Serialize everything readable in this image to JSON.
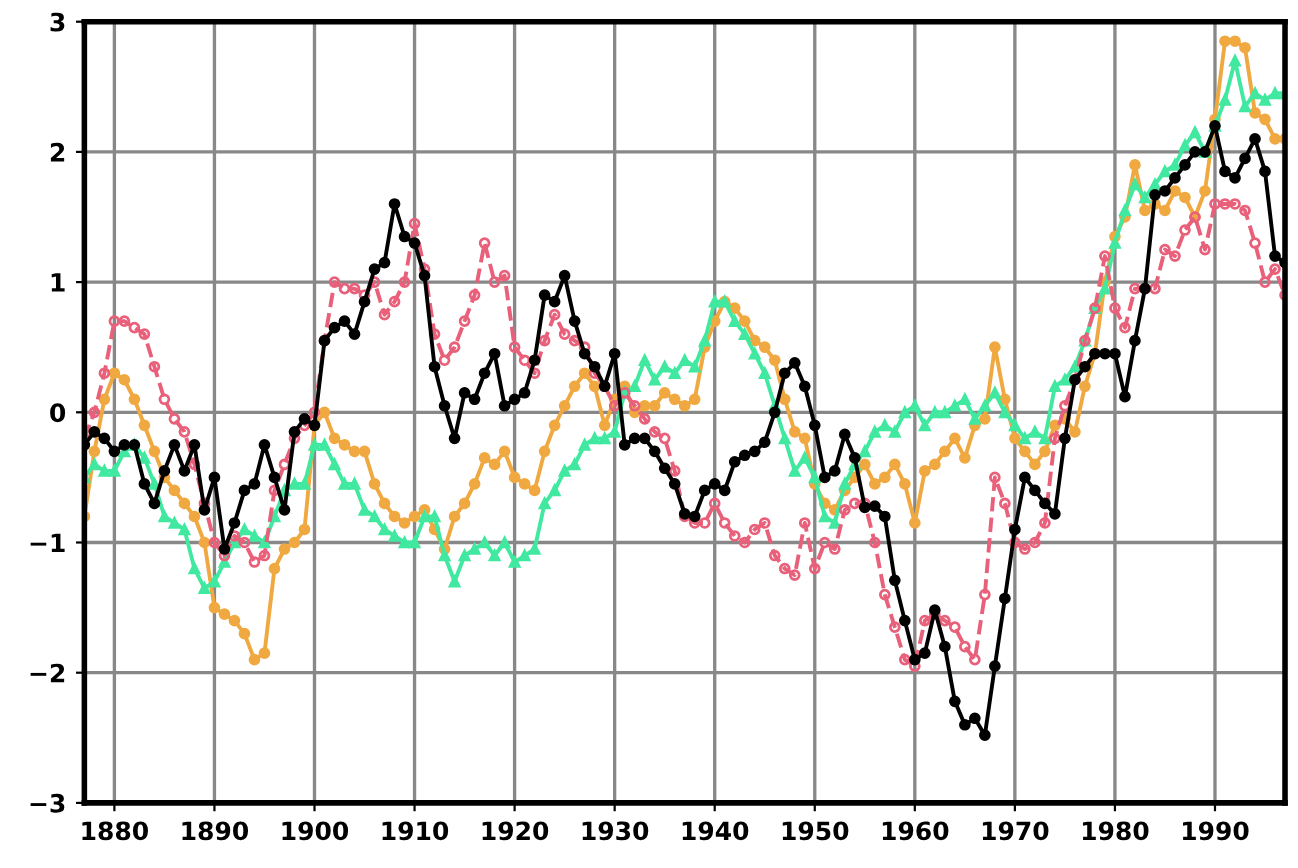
{
  "chart_data": {
    "type": "line",
    "x": [
      1877,
      1878,
      1879,
      1880,
      1881,
      1882,
      1883,
      1884,
      1885,
      1886,
      1887,
      1888,
      1889,
      1890,
      1891,
      1892,
      1893,
      1894,
      1895,
      1896,
      1897,
      1898,
      1899,
      1900,
      1901,
      1902,
      1903,
      1904,
      1905,
      1906,
      1907,
      1908,
      1909,
      1910,
      1911,
      1912,
      1913,
      1914,
      1915,
      1916,
      1917,
      1918,
      1919,
      1920,
      1921,
      1922,
      1923,
      1924,
      1925,
      1926,
      1927,
      1928,
      1929,
      1930,
      1931,
      1932,
      1933,
      1934,
      1935,
      1936,
      1937,
      1938,
      1939,
      1940,
      1941,
      1942,
      1943,
      1944,
      1945,
      1946,
      1947,
      1948,
      1949,
      1950,
      1951,
      1952,
      1953,
      1954,
      1955,
      1956,
      1957,
      1958,
      1959,
      1960,
      1961,
      1962,
      1963,
      1964,
      1965,
      1966,
      1967,
      1968,
      1969,
      1970,
      1971,
      1972,
      1973,
      1974,
      1975,
      1976,
      1977,
      1978,
      1979,
      1980,
      1981,
      1982,
      1983,
      1984,
      1985,
      1986,
      1987,
      1988,
      1989,
      1990,
      1991,
      1992,
      1993,
      1994,
      1995,
      1996,
      1997
    ],
    "series": [
      {
        "color": "#f0a840",
        "marker": "circle",
        "line_style": "solid",
        "values": [
          -0.8,
          -0.3,
          0.1,
          0.3,
          0.25,
          0.1,
          -0.1,
          -0.3,
          -0.5,
          -0.6,
          -0.7,
          -0.8,
          -1.0,
          -1.5,
          -1.55,
          -1.6,
          -1.7,
          -1.9,
          -1.85,
          -1.2,
          -1.05,
          -1.0,
          -0.9,
          -0.1,
          0.0,
          -0.2,
          -0.25,
          -0.3,
          -0.3,
          -0.55,
          -0.7,
          -0.8,
          -0.85,
          -0.8,
          -0.75,
          -0.9,
          -1.05,
          -0.8,
          -0.7,
          -0.55,
          -0.35,
          -0.4,
          -0.3,
          -0.5,
          -0.55,
          -0.6,
          -0.3,
          -0.1,
          0.05,
          0.2,
          0.3,
          0.2,
          -0.1,
          0.1,
          0.2,
          0.0,
          0.05,
          0.05,
          0.15,
          0.1,
          0.05,
          0.1,
          0.5,
          0.7,
          0.85,
          0.8,
          0.7,
          0.55,
          0.5,
          0.4,
          0.1,
          -0.15,
          -0.2,
          -0.55,
          -0.7,
          -0.75,
          -0.6,
          -0.5,
          -0.4,
          -0.55,
          -0.5,
          -0.4,
          -0.55,
          -0.85,
          -0.45,
          -0.4,
          -0.3,
          -0.2,
          -0.35,
          -0.1,
          -0.05,
          0.5,
          0.1,
          -0.2,
          -0.3,
          -0.4,
          -0.3,
          -0.1,
          -0.05,
          -0.15,
          0.2,
          0.45,
          1.0,
          1.35,
          1.5,
          1.9,
          1.55,
          1.6,
          1.55,
          1.7,
          1.65,
          1.5,
          1.7,
          2.25,
          2.85,
          2.85,
          2.8,
          2.3,
          2.25,
          2.1,
          2.1
        ]
      },
      {
        "color": "#40e8a0",
        "marker": "triangle",
        "line_style": "solid",
        "values": [
          -0.5,
          -0.4,
          -0.45,
          -0.45,
          -0.3,
          -0.25,
          -0.35,
          -0.55,
          -0.8,
          -0.85,
          -0.9,
          -1.2,
          -1.35,
          -1.3,
          -1.15,
          -1.0,
          -0.9,
          -0.95,
          -1.0,
          -0.8,
          -0.6,
          -0.55,
          -0.55,
          -0.25,
          -0.25,
          -0.4,
          -0.55,
          -0.55,
          -0.75,
          -0.8,
          -0.9,
          -0.95,
          -1.0,
          -1.0,
          -0.8,
          -0.8,
          -1.1,
          -1.3,
          -1.1,
          -1.05,
          -1.0,
          -1.1,
          -1.0,
          -1.15,
          -1.1,
          -1.05,
          -0.7,
          -0.6,
          -0.45,
          -0.4,
          -0.25,
          -0.2,
          -0.2,
          -0.15,
          0.15,
          0.2,
          0.4,
          0.25,
          0.35,
          0.3,
          0.4,
          0.35,
          0.55,
          0.85,
          0.85,
          0.7,
          0.6,
          0.45,
          0.3,
          0.05,
          -0.2,
          -0.45,
          -0.35,
          -0.5,
          -0.8,
          -0.85,
          -0.55,
          -0.4,
          -0.3,
          -0.15,
          -0.1,
          -0.15,
          0.0,
          0.05,
          -0.1,
          0.0,
          0.0,
          0.05,
          0.1,
          -0.05,
          0.05,
          0.15,
          0.0,
          -0.1,
          -0.2,
          -0.15,
          -0.2,
          0.2,
          0.25,
          0.35,
          0.55,
          0.8,
          0.95,
          1.3,
          1.55,
          1.75,
          1.65,
          1.75,
          1.85,
          1.9,
          2.05,
          2.15,
          2.0,
          2.2,
          2.4,
          2.7,
          2.35,
          2.45,
          2.4,
          2.45,
          2.45
        ]
      },
      {
        "color": "#e8607a",
        "marker": "circle",
        "line_style": "dashed",
        "values": [
          -0.2,
          0.0,
          0.3,
          0.7,
          0.7,
          0.65,
          0.6,
          0.35,
          0.1,
          -0.05,
          -0.15,
          -0.4,
          -0.7,
          -1.0,
          -1.1,
          -0.95,
          -1.0,
          -1.15,
          -1.1,
          -0.6,
          -0.4,
          -0.2,
          -0.1,
          0.0,
          0.55,
          1.0,
          0.95,
          0.95,
          0.9,
          1.0,
          0.75,
          0.85,
          1.0,
          1.45,
          1.1,
          0.6,
          0.4,
          0.5,
          0.7,
          0.9,
          1.3,
          1.0,
          1.05,
          0.5,
          0.4,
          0.3,
          0.55,
          0.75,
          0.6,
          0.55,
          0.5,
          0.3,
          0.2,
          0.05,
          0.15,
          0.05,
          -0.05,
          -0.15,
          -0.2,
          -0.45,
          -0.8,
          -0.85,
          -0.85,
          -0.7,
          -0.85,
          -0.95,
          -1.0,
          -0.9,
          -0.85,
          -1.1,
          -1.2,
          -1.25,
          -0.85,
          -1.2,
          -1.0,
          -1.05,
          -0.75,
          -0.7,
          -0.7,
          -1.0,
          -1.4,
          -1.65,
          -1.9,
          -1.95,
          -1.6,
          -1.55,
          -1.6,
          -1.65,
          -1.8,
          -1.9,
          -1.4,
          -0.5,
          -0.7,
          -1.0,
          -1.05,
          -1.0,
          -0.85,
          -0.2,
          0.05,
          0.25,
          0.55,
          0.8,
          1.2,
          0.8,
          0.65,
          0.95,
          0.95,
          0.95,
          1.25,
          1.2,
          1.4,
          1.5,
          1.25,
          1.6,
          1.6,
          1.6,
          1.55,
          1.3,
          1.0,
          1.1,
          0.9
        ]
      },
      {
        "color": "#000000",
        "marker": "circle",
        "line_style": "solid",
        "values": [
          -0.25,
          -0.15,
          -0.2,
          -0.3,
          -0.25,
          -0.25,
          -0.55,
          -0.7,
          -0.45,
          -0.25,
          -0.45,
          -0.25,
          -0.75,
          -0.5,
          -1.05,
          -0.85,
          -0.6,
          -0.55,
          -0.25,
          -0.5,
          -0.75,
          -0.15,
          -0.05,
          -0.1,
          0.55,
          0.65,
          0.7,
          0.6,
          0.85,
          1.1,
          1.15,
          1.6,
          1.35,
          1.3,
          1.05,
          0.35,
          0.05,
          -0.2,
          0.15,
          0.1,
          0.3,
          0.45,
          0.05,
          0.1,
          0.15,
          0.4,
          0.9,
          0.85,
          1.05,
          0.7,
          0.45,
          0.35,
          0.2,
          0.45,
          -0.25,
          -0.2,
          -0.2,
          -0.3,
          -0.43,
          -0.55,
          -0.78,
          -0.8,
          -0.6,
          -0.55,
          -0.6,
          -0.38,
          -0.33,
          -0.3,
          -0.23,
          0.0,
          0.3,
          0.38,
          0.2,
          -0.1,
          -0.5,
          -0.45,
          -0.17,
          -0.35,
          -0.73,
          -0.72,
          -0.8,
          -1.29,
          -1.6,
          -1.9,
          -1.85,
          -1.52,
          -1.8,
          -2.22,
          -2.4,
          -2.35,
          -2.48,
          -1.95,
          -1.43,
          -0.9,
          -0.5,
          -0.6,
          -0.7,
          -0.78,
          -0.2,
          0.25,
          0.35,
          0.45,
          0.45,
          0.45,
          0.12,
          0.55,
          0.95,
          1.67,
          1.7,
          1.8,
          1.9,
          2.0,
          2.0,
          2.2,
          1.85,
          1.8,
          1.95,
          2.1,
          1.85,
          1.2,
          1.15
        ]
      }
    ],
    "xlim": [
      1877,
      1997
    ],
    "xticks": [
      1880,
      1890,
      1900,
      1910,
      1920,
      1930,
      1940,
      1950,
      1960,
      1970,
      1980,
      1990
    ],
    "ylim": [
      -3,
      3
    ],
    "yticks": [
      -3,
      -2,
      -1,
      0,
      1,
      2,
      3
    ],
    "grid": true
  }
}
